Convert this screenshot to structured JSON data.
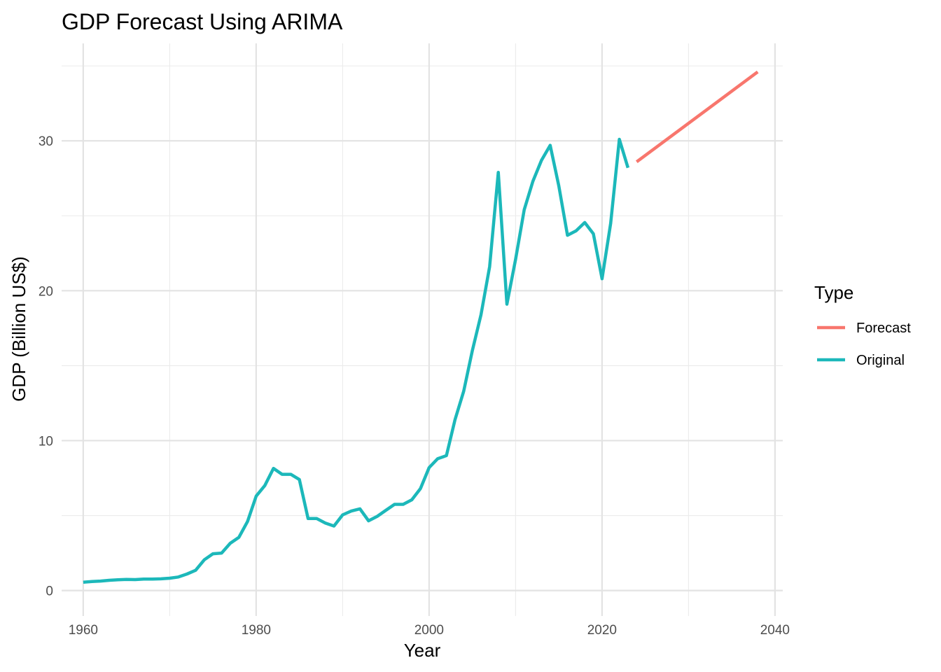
{
  "chart_data": {
    "type": "line",
    "title": "GDP Forecast Using ARIMA",
    "xlabel": "Year",
    "ylabel": "GDP (Billion US$)",
    "xlim": [
      1957.5,
      2040.9
    ],
    "ylim": [
      -1.7,
      36.5
    ],
    "x_ticks": [
      1960,
      1980,
      2000,
      2020,
      2040
    ],
    "y_ticks": [
      0,
      10,
      20,
      30
    ],
    "grid": true,
    "legend": {
      "title": "Type",
      "placement": "right"
    },
    "series": [
      {
        "name": "Forecast",
        "color": "#F8766D",
        "points": [
          [
            2024,
            28.6
          ],
          [
            2038,
            34.6
          ]
        ]
      },
      {
        "name": "Original",
        "color": "#1CB8BA",
        "points": [
          [
            1960,
            0.55
          ],
          [
            1961,
            0.6
          ],
          [
            1962,
            0.63
          ],
          [
            1963,
            0.68
          ],
          [
            1964,
            0.72
          ],
          [
            1965,
            0.74
          ],
          [
            1966,
            0.73
          ],
          [
            1967,
            0.76
          ],
          [
            1968,
            0.76
          ],
          [
            1969,
            0.78
          ],
          [
            1970,
            0.82
          ],
          [
            1971,
            0.9
          ],
          [
            1972,
            1.1
          ],
          [
            1973,
            1.35
          ],
          [
            1974,
            2.05
          ],
          [
            1975,
            2.45
          ],
          [
            1976,
            2.5
          ],
          [
            1977,
            3.15
          ],
          [
            1978,
            3.55
          ],
          [
            1979,
            4.6
          ],
          [
            1980,
            6.3
          ],
          [
            1981,
            7.0
          ],
          [
            1982,
            8.15
          ],
          [
            1983,
            7.75
          ],
          [
            1984,
            7.75
          ],
          [
            1985,
            7.4
          ],
          [
            1986,
            4.8
          ],
          [
            1987,
            4.8
          ],
          [
            1988,
            4.5
          ],
          [
            1989,
            4.3
          ],
          [
            1990,
            5.05
          ],
          [
            1991,
            5.3
          ],
          [
            1992,
            5.45
          ],
          [
            1993,
            4.65
          ],
          [
            1994,
            4.95
          ],
          [
            1995,
            5.35
          ],
          [
            1996,
            5.75
          ],
          [
            1997,
            5.75
          ],
          [
            1998,
            6.05
          ],
          [
            1999,
            6.8
          ],
          [
            2000,
            8.2
          ],
          [
            2001,
            8.8
          ],
          [
            2002,
            9.0
          ],
          [
            2003,
            11.4
          ],
          [
            2004,
            13.3
          ],
          [
            2005,
            16.0
          ],
          [
            2006,
            18.4
          ],
          [
            2007,
            21.6
          ],
          [
            2008,
            27.9
          ],
          [
            2009,
            19.1
          ],
          [
            2010,
            22.1
          ],
          [
            2011,
            25.4
          ],
          [
            2012,
            27.3
          ],
          [
            2013,
            28.7
          ],
          [
            2014,
            29.7
          ],
          [
            2015,
            27.0
          ],
          [
            2016,
            23.7
          ],
          [
            2017,
            24.0
          ],
          [
            2018,
            24.55
          ],
          [
            2019,
            23.8
          ],
          [
            2020,
            20.8
          ],
          [
            2021,
            24.5
          ],
          [
            2022,
            30.1
          ],
          [
            2023,
            28.2
          ]
        ]
      }
    ]
  }
}
